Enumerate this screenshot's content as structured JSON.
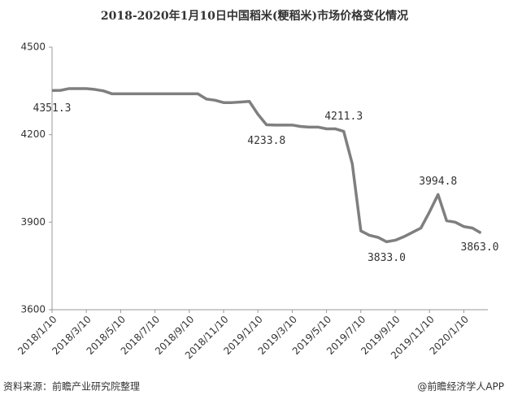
{
  "chart_data": {
    "type": "line",
    "title": "2018-2020年1月10日中国稻米(粳稻米)市场价格变化情况",
    "categories": [
      "2018/1/10",
      null,
      null,
      null,
      "2018/3/10",
      null,
      null,
      null,
      "2018/5/10",
      null,
      null,
      null,
      "2018/7/10",
      null,
      null,
      null,
      "2018/9/10",
      null,
      null,
      null,
      "2018/11/10",
      null,
      null,
      null,
      "2019/1/10",
      null,
      null,
      null,
      "2019/3/10",
      null,
      null,
      null,
      "2019/5/10",
      null,
      null,
      null,
      "2019/7/10",
      null,
      null,
      null,
      "2019/9/10",
      null,
      null,
      null,
      "2019/11/10",
      null,
      null,
      null,
      "2020/1/10",
      null,
      null
    ],
    "series": [
      {
        "color": "#7f7f7f",
        "values": [
          4351.3,
          4352,
          4358,
          4358,
          4358,
          4355,
          4350,
          4340,
          4340,
          4340,
          4340,
          4340,
          4340,
          4340,
          4340,
          4340,
          4340,
          4340,
          4322,
          4318,
          4310,
          4310,
          4312,
          4314,
          4270,
          4233.8,
          4233,
          4233,
          4233,
          4228,
          4226,
          4226,
          4220,
          4220,
          4211.3,
          4100,
          3870,
          3855,
          3848,
          3833,
          3838,
          3850,
          3865,
          3880,
          3935,
          3994.8,
          3905,
          3900,
          3885,
          3880,
          3863
        ],
        "value_labels": [
          "4351.3",
          null,
          null,
          null,
          null,
          null,
          null,
          null,
          null,
          null,
          null,
          null,
          null,
          null,
          null,
          null,
          null,
          null,
          null,
          null,
          null,
          null,
          null,
          null,
          null,
          "4233.8",
          null,
          null,
          null,
          null,
          null,
          null,
          null,
          null,
          "4211.3",
          null,
          null,
          null,
          null,
          "3833.0",
          null,
          null,
          null,
          null,
          null,
          "3994.8",
          null,
          null,
          null,
          null,
          "3863.0"
        ]
      }
    ],
    "ylim": [
      3600,
      4500
    ],
    "yticks": [
      3600,
      3900,
      4200,
      4500
    ]
  },
  "footer": {
    "source": "资料来源：前瞻产业研究院整理",
    "brand": "@前瞻经济学人APP"
  }
}
